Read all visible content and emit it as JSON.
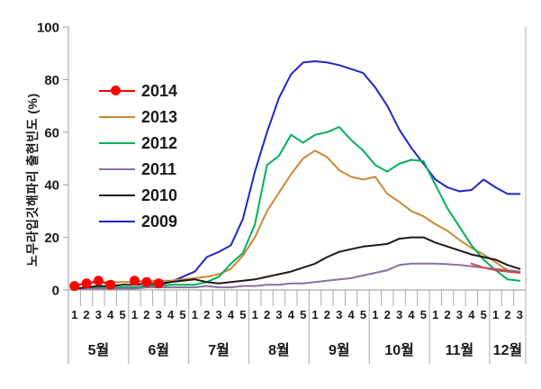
{
  "chart_data": {
    "type": "line",
    "title": "",
    "ylabel": "노무라입깃해파리 출현빈도 (%)",
    "ylim": [
      0,
      100
    ],
    "y_ticks": [
      "0",
      "20",
      "40",
      "60",
      "80",
      "100"
    ],
    "grid": false,
    "legend_position": "inside-upper-left",
    "x_months": [
      {
        "label": "5월",
        "weeks": [
          "1",
          "2",
          "3",
          "4",
          "5"
        ]
      },
      {
        "label": "6월",
        "weeks": [
          "1",
          "2",
          "3",
          "4",
          "5"
        ]
      },
      {
        "label": "7월",
        "weeks": [
          "1",
          "2",
          "3",
          "4",
          "5"
        ]
      },
      {
        "label": "8월",
        "weeks": [
          "1",
          "2",
          "3",
          "4",
          "5"
        ]
      },
      {
        "label": "9월",
        "weeks": [
          "1",
          "2",
          "3",
          "4",
          "5"
        ]
      },
      {
        "label": "10월",
        "weeks": [
          "1",
          "2",
          "3",
          "4",
          "5"
        ]
      },
      {
        "label": "11월",
        "weeks": [
          "1",
          "2",
          "3",
          "4",
          "5"
        ]
      },
      {
        "label": "12월",
        "weeks": [
          "1",
          "2",
          "3"
        ]
      }
    ],
    "series": [
      {
        "name": "2009",
        "color": "#2323CE",
        "marker": "none",
        "values": [
          0.5,
          0.5,
          0.5,
          1,
          1,
          1,
          1.5,
          2,
          3,
          5,
          7,
          12.5,
          14.5,
          17,
          27,
          45,
          60,
          73,
          82,
          86.5,
          87,
          86.5,
          85.5,
          84,
          82.5,
          77,
          70,
          61,
          54,
          48,
          42,
          39,
          37.5,
          38,
          42,
          39,
          36.5,
          36.5
        ]
      },
      {
        "name": "2013",
        "color": "#CC8833",
        "marker": "none",
        "values": [
          2,
          2.5,
          3,
          3,
          3,
          3,
          3.5,
          3.5,
          3.5,
          4,
          4.5,
          5,
          6,
          8,
          13,
          20,
          30,
          37,
          44,
          50,
          53,
          50.5,
          45.5,
          43,
          42,
          43,
          36.5,
          33.5,
          30,
          28,
          25,
          22.5,
          19,
          16,
          13.5,
          10.5,
          7.5,
          6.5
        ]
      },
      {
        "name": "2012",
        "color": "#00B05C",
        "marker": "none",
        "values": [
          0.5,
          0.5,
          1,
          1,
          1,
          1,
          1.5,
          1.5,
          2,
          2,
          2,
          3,
          5,
          10,
          14,
          25,
          47.5,
          51,
          59,
          56,
          59,
          60,
          62,
          57,
          53,
          47.5,
          45,
          48,
          49.5,
          49,
          40,
          31,
          24,
          17,
          11.5,
          7.5,
          4,
          3.5
        ]
      },
      {
        "name": "2011",
        "color": "#8671A5",
        "marker": "none",
        "values": [
          0.5,
          0.5,
          0.5,
          0.5,
          0.5,
          0.5,
          1,
          1,
          1,
          1,
          1,
          1.5,
          1,
          1,
          1.5,
          1.5,
          2,
          2,
          2.5,
          2.5,
          3,
          3.5,
          4,
          4.5,
          5.5,
          6.5,
          7.5,
          9.5,
          10,
          10,
          10,
          9.8,
          9.5,
          9,
          8.5,
          8,
          7.5,
          7
        ]
      },
      {
        "name": "2010",
        "color": "#1A1A1A",
        "marker": "none",
        "values": [
          0.5,
          1,
          1.5,
          1.5,
          2,
          2,
          2.5,
          2.5,
          3,
          3.5,
          4,
          3,
          2.5,
          3,
          3.5,
          4,
          5,
          6,
          7,
          8.5,
          10,
          12.5,
          14.5,
          15.5,
          16.5,
          17,
          17.5,
          19.5,
          20,
          20,
          18,
          16.5,
          15,
          13.5,
          12.5,
          11.5,
          9.5,
          8
        ]
      },
      {
        "name": "2014",
        "color": "#FF0000",
        "marker": "circle",
        "marker_radius": 5.5,
        "marker_through_index": 7,
        "late_segment_color": "#CC4A41",
        "values": [
          1.5,
          2.5,
          3.5,
          2,
          null,
          3.5,
          3,
          2.5,
          null,
          null,
          null,
          null,
          null,
          null,
          null,
          null,
          null,
          null,
          null,
          null,
          null,
          null,
          null,
          null,
          null,
          null,
          null,
          null,
          null,
          null,
          null,
          null,
          null,
          10,
          8.5,
          7.5,
          7,
          6.5
        ]
      }
    ]
  },
  "legend": [
    {
      "label": "2014",
      "color": "#FF0000",
      "swatch": "line-dot"
    },
    {
      "label": "2013",
      "color": "#CC8833",
      "swatch": "line"
    },
    {
      "label": "2012",
      "color": "#00B05C",
      "swatch": "line"
    },
    {
      "label": "2011",
      "color": "#8671A5",
      "swatch": "line"
    },
    {
      "label": "2010",
      "color": "#1A1A1A",
      "swatch": "line"
    },
    {
      "label": "2009",
      "color": "#2323CE",
      "swatch": "line"
    }
  ]
}
